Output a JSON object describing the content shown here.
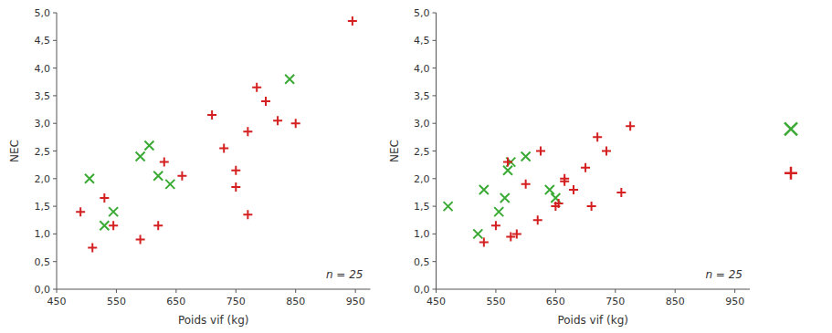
{
  "chart_data": [
    {
      "type": "scatter",
      "x_label": "Poids vif (kg)",
      "y_label": "NEC",
      "xlim": [
        450,
        975
      ],
      "ylim": [
        0.0,
        5.0
      ],
      "xticks": [
        450,
        550,
        650,
        750,
        850,
        950
      ],
      "yticks": [
        {
          "value": 0.0,
          "label": "0,0"
        },
        {
          "value": 0.5,
          "label": "0,5"
        },
        {
          "value": 1.0,
          "label": "1,0"
        },
        {
          "value": 1.5,
          "label": "1,5"
        },
        {
          "value": 2.0,
          "label": "2,0"
        },
        {
          "value": 2.5,
          "label": "2,5"
        },
        {
          "value": 3.0,
          "label": "3,0"
        },
        {
          "value": 3.5,
          "label": "3,5"
        },
        {
          "value": 4.0,
          "label": "4,0"
        },
        {
          "value": 4.5,
          "label": "4,5"
        },
        {
          "value": 5.0,
          "label": "5,0"
        }
      ],
      "grid": false,
      "annotations": [
        "n = 25"
      ],
      "series": [
        {
          "color": "#3aaa35",
          "marker": "x",
          "x": [
            505,
            530,
            545,
            590,
            605,
            620,
            640,
            840
          ],
          "values": [
            2.0,
            1.15,
            1.4,
            2.4,
            2.6,
            2.05,
            1.9,
            3.8
          ]
        },
        {
          "color": "#d42020",
          "marker": "plus",
          "x": [
            490,
            510,
            530,
            545,
            590,
            620,
            630,
            660,
            710,
            730,
            750,
            750,
            770,
            785,
            800,
            820,
            850,
            770,
            945
          ],
          "values": [
            1.4,
            0.75,
            1.65,
            1.15,
            0.9,
            1.15,
            2.3,
            2.05,
            3.15,
            2.55,
            1.85,
            2.15,
            2.85,
            3.65,
            3.4,
            3.05,
            3.0,
            1.35,
            4.85
          ]
        }
      ]
    },
    {
      "type": "scatter",
      "x_label": "Poids vif (kg)",
      "y_label": "NEC",
      "xlim": [
        450,
        975
      ],
      "ylim": [
        0.0,
        5.0
      ],
      "xticks": [
        450,
        550,
        650,
        750,
        850,
        950
      ],
      "yticks": [
        {
          "value": 0.0,
          "label": "0,0"
        },
        {
          "value": 0.5,
          "label": "0,5"
        },
        {
          "value": 1.0,
          "label": "1,0"
        },
        {
          "value": 1.5,
          "label": "1,5"
        },
        {
          "value": 2.0,
          "label": "2,0"
        },
        {
          "value": 2.5,
          "label": "2,5"
        },
        {
          "value": 3.0,
          "label": "3,0"
        },
        {
          "value": 3.5,
          "label": "3,5"
        },
        {
          "value": 4.0,
          "label": "4,0"
        },
        {
          "value": 4.5,
          "label": "4,5"
        },
        {
          "value": 5.0,
          "label": "5,0"
        }
      ],
      "grid": false,
      "legend": "right",
      "annotations": [
        "n = 25"
      ],
      "series": [
        {
          "color": "#3aaa35",
          "marker": "x",
          "x": [
            470,
            520,
            530,
            555,
            565,
            570,
            575,
            600,
            640,
            650
          ],
          "values": [
            1.5,
            1.0,
            1.8,
            1.4,
            1.65,
            2.15,
            2.3,
            2.4,
            1.8,
            1.65
          ]
        },
        {
          "color": "#d42020",
          "marker": "plus",
          "x": [
            530,
            550,
            570,
            575,
            585,
            600,
            620,
            625,
            650,
            655,
            665,
            665,
            680,
            700,
            710,
            720,
            735,
            760,
            775
          ],
          "values": [
            0.85,
            1.15,
            2.3,
            0.95,
            1.0,
            1.9,
            1.25,
            2.5,
            1.5,
            1.55,
            1.95,
            2.0,
            1.8,
            2.2,
            1.5,
            2.75,
            2.5,
            1.75,
            2.95
          ]
        }
      ]
    }
  ]
}
